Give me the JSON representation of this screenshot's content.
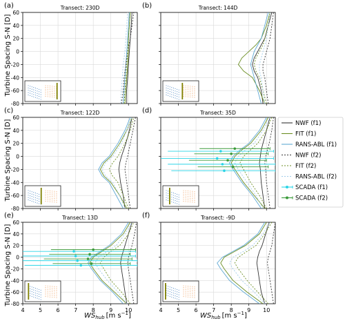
{
  "figure": {
    "shared_ylabel": "Turbine Spacing S-N [D]",
    "shared_xlabel_main": "WS",
    "shared_xlabel_sub": "hub",
    "shared_xlabel_unit": "[m s",
    "shared_xlabel_exp": "−1",
    "shared_xlabel_close": "]"
  },
  "legend": {
    "items": [
      {
        "label": "NWF (f1)",
        "color": "#333333",
        "dash": "solid",
        "marker": "none"
      },
      {
        "label": "FIT (f1)",
        "color": "#6b8e23",
        "dash": "solid",
        "marker": "none"
      },
      {
        "label": "RANS-ABL (f1)",
        "color": "#5fa8d3",
        "dash": "solid",
        "marker": "none"
      },
      {
        "label": "NWF (f2)",
        "color": "#333333",
        "dash": "dotted",
        "marker": "none"
      },
      {
        "label": "FIT (f2)",
        "color": "#6b8e23",
        "dash": "dotted",
        "marker": "none"
      },
      {
        "label": "RANS-ABL (f2)",
        "color": "#9fcbe8",
        "dash": "dotted",
        "marker": "none"
      },
      {
        "label": "SCADA (f1)",
        "color": "#2ad4e6",
        "dash": "solid",
        "marker": "circle"
      },
      {
        "label": "SCADA (f2)",
        "color": "#3a9a3a",
        "dash": "solid",
        "marker": "circle"
      }
    ]
  },
  "colors": {
    "nwf": "#333333",
    "fit": "#6b8e23",
    "rans": "#5fa8d3",
    "rans2": "#9fcbe8",
    "scada1": "#2ad4e6",
    "scada2": "#3a9a3a",
    "inset_left": "#3f7fbf",
    "inset_right": "#f0a060",
    "inset_bar": "#808000"
  },
  "chart_data": [
    {
      "type": "line",
      "panel": "(a)",
      "title": "Transect: 230D",
      "xlim": [
        4,
        10.5
      ],
      "ylim": [
        -80,
        60
      ],
      "xticks": [
        4,
        5,
        6,
        7,
        8,
        9,
        10
      ],
      "yticks": [
        -80,
        -60,
        -40,
        -20,
        0,
        20,
        40,
        60
      ],
      "y": [
        -80,
        -60,
        -40,
        -20,
        0,
        20,
        40,
        60
      ],
      "series": [
        {
          "key": "nwf_f1",
          "values": [
            9.9,
            9.9,
            9.95,
            10.0,
            10.05,
            10.1,
            10.15,
            10.2
          ]
        },
        {
          "key": "fit_f1",
          "values": [
            9.8,
            9.85,
            9.9,
            9.95,
            10.0,
            10.0,
            10.05,
            10.1
          ]
        },
        {
          "key": "rans_f1",
          "values": [
            9.7,
            9.75,
            9.8,
            9.85,
            9.9,
            9.95,
            10.0,
            10.05
          ]
        },
        {
          "key": "nwf_f2",
          "values": [
            9.6,
            9.7,
            9.75,
            9.85,
            9.95,
            10.1,
            10.2,
            10.3
          ]
        },
        {
          "key": "fit_f2",
          "values": [
            9.75,
            9.8,
            9.85,
            9.9,
            9.95,
            10.0,
            10.05,
            10.1
          ]
        },
        {
          "key": "rans_f2",
          "values": [
            9.55,
            9.6,
            9.65,
            9.7,
            9.8,
            9.85,
            9.9,
            9.95
          ]
        }
      ],
      "scada": [],
      "inset_bar_position": 0.95
    },
    {
      "type": "line",
      "panel": "(b)",
      "title": "Transect: 144D",
      "xlim": [
        4,
        10.5
      ],
      "ylim": [
        -80,
        60
      ],
      "xticks": [
        4,
        5,
        6,
        7,
        8,
        9,
        10
      ],
      "yticks": [
        -80,
        -60,
        -40,
        -20,
        0,
        20,
        40,
        60
      ],
      "y": [
        -80,
        -60,
        -40,
        -30,
        -20,
        -10,
        0,
        10,
        20,
        40,
        60
      ],
      "series": [
        {
          "key": "nwf_f1",
          "values": [
            9.8,
            9.7,
            9.5,
            9.3,
            9.2,
            9.3,
            9.5,
            9.7,
            9.9,
            10.1,
            10.3
          ]
        },
        {
          "key": "fit_f1",
          "values": [
            9.9,
            9.6,
            9.2,
            8.7,
            8.4,
            8.6,
            9.0,
            9.4,
            9.7,
            10.0,
            10.2
          ]
        },
        {
          "key": "rans_f1",
          "values": [
            9.7,
            9.5,
            9.3,
            9.2,
            9.1,
            9.2,
            9.3,
            9.5,
            9.7,
            9.9,
            10.1
          ]
        },
        {
          "key": "nwf_f2",
          "values": [
            10.1,
            10.0,
            9.9,
            9.8,
            9.8,
            9.9,
            10.0,
            10.1,
            10.2,
            10.3,
            10.4
          ]
        },
        {
          "key": "fit_f2",
          "values": [
            10.0,
            9.8,
            9.6,
            9.4,
            9.3,
            9.4,
            9.6,
            9.8,
            9.9,
            10.1,
            10.2
          ]
        },
        {
          "key": "rans_f2",
          "values": [
            9.9,
            9.8,
            9.7,
            9.6,
            9.6,
            9.7,
            9.8,
            9.9,
            10.0,
            10.1,
            10.2
          ]
        }
      ],
      "scada": [],
      "inset_bar_position": 0.55
    },
    {
      "type": "line",
      "panel": "(c)",
      "title": "Transect: 122D",
      "xlim": [
        4,
        10.5
      ],
      "ylim": [
        -80,
        60
      ],
      "xticks": [
        4,
        5,
        6,
        7,
        8,
        9,
        10
      ],
      "yticks": [
        -80,
        -60,
        -40,
        -20,
        0,
        20,
        40,
        60
      ],
      "y": [
        -80,
        -60,
        -40,
        -30,
        -20,
        -10,
        0,
        20,
        40,
        60
      ],
      "series": [
        {
          "key": "nwf_f1",
          "values": [
            9.8,
            9.7,
            9.55,
            9.5,
            9.45,
            9.5,
            9.6,
            9.85,
            10.05,
            10.2
          ]
        },
        {
          "key": "fit_f1",
          "values": [
            9.9,
            9.5,
            9.0,
            8.6,
            8.4,
            8.6,
            9.0,
            9.5,
            9.9,
            10.2
          ]
        },
        {
          "key": "rans_f1",
          "values": [
            9.7,
            9.3,
            8.9,
            8.5,
            8.3,
            8.5,
            8.9,
            9.4,
            9.8,
            10.1
          ]
        },
        {
          "key": "nwf_f2",
          "values": [
            10.1,
            10.0,
            9.9,
            9.85,
            9.8,
            9.85,
            9.95,
            10.1,
            10.25,
            10.4
          ]
        },
        {
          "key": "fit_f2",
          "values": [
            10.0,
            9.7,
            9.4,
            9.1,
            8.9,
            9.1,
            9.4,
            9.8,
            10.1,
            10.3
          ]
        },
        {
          "key": "rans_f2",
          "values": [
            9.8,
            9.5,
            9.1,
            8.7,
            8.5,
            8.7,
            9.1,
            9.6,
            9.9,
            10.2
          ]
        }
      ],
      "scada": [],
      "inset_bar_position": 0.45
    },
    {
      "type": "line",
      "panel": "(d)",
      "title": "Transect: 35D",
      "xlim": [
        4,
        10.5
      ],
      "ylim": [
        -80,
        60
      ],
      "xticks": [
        4,
        5,
        6,
        7,
        8,
        9,
        10
      ],
      "yticks": [
        -80,
        -60,
        -40,
        -20,
        0,
        20,
        40,
        60
      ],
      "y": [
        -80,
        -60,
        -40,
        -20,
        -10,
        0,
        10,
        20,
        40,
        60
      ],
      "series": [
        {
          "key": "nwf_f1",
          "values": [
            9.9,
            9.8,
            9.7,
            9.65,
            9.6,
            9.65,
            9.7,
            9.8,
            10.0,
            10.2
          ]
        },
        {
          "key": "fit_f1",
          "values": [
            9.9,
            9.3,
            8.7,
            8.2,
            8.0,
            8.2,
            8.6,
            9.1,
            9.7,
            10.1
          ]
        },
        {
          "key": "rans_f1",
          "values": [
            9.7,
            9.2,
            8.6,
            8.1,
            7.9,
            8.1,
            8.5,
            9.0,
            9.6,
            10.0
          ]
        },
        {
          "key": "nwf_f2",
          "values": [
            10.2,
            10.1,
            10.0,
            9.95,
            9.9,
            9.95,
            10.05,
            10.15,
            10.3,
            10.4
          ]
        },
        {
          "key": "fit_f2",
          "values": [
            10.0,
            9.6,
            9.1,
            8.7,
            8.5,
            8.7,
            9.1,
            9.5,
            10.0,
            10.3
          ]
        },
        {
          "key": "rans_f2",
          "values": [
            9.8,
            9.4,
            8.9,
            8.4,
            8.2,
            8.4,
            8.8,
            9.3,
            9.8,
            10.2
          ]
        }
      ],
      "scada": [
        {
          "group": "f1",
          "y": [
            8,
            -3,
            -12,
            -22
          ],
          "x": [
            7.4,
            7.2,
            7.5,
            7.6
          ],
          "err": [
            3.0,
            3.2,
            3.1,
            3.0
          ]
        },
        {
          "group": "f2",
          "y": [
            12,
            4,
            -6,
            -16
          ],
          "x": [
            8.2,
            8.0,
            7.8,
            8.1
          ],
          "err": [
            2.0,
            2.1,
            2.2,
            2.0
          ]
        }
      ],
      "inset_bar_position": 0.15
    },
    {
      "type": "line",
      "panel": "(e)",
      "title": "Transect: 13D",
      "xlim": [
        4,
        10.5
      ],
      "ylim": [
        -80,
        60
      ],
      "xticks": [
        4,
        5,
        6,
        7,
        8,
        9,
        10
      ],
      "yticks": [
        -80,
        -60,
        -40,
        -20,
        0,
        20,
        40,
        60
      ],
      "y": [
        -80,
        -60,
        -40,
        -20,
        -10,
        0,
        10,
        20,
        40,
        60
      ],
      "series": [
        {
          "key": "nwf_f1",
          "values": [
            9.9,
            9.8,
            9.7,
            9.6,
            9.55,
            9.6,
            9.7,
            9.8,
            10.0,
            10.2
          ]
        },
        {
          "key": "fit_f1",
          "values": [
            9.9,
            9.2,
            8.5,
            8.0,
            7.8,
            8.0,
            8.5,
            9.0,
            9.7,
            10.1
          ]
        },
        {
          "key": "rans_f1",
          "values": [
            9.7,
            9.1,
            8.4,
            7.9,
            7.7,
            7.9,
            8.4,
            8.9,
            9.6,
            10.0
          ]
        },
        {
          "key": "nwf_f2",
          "values": [
            10.3,
            10.2,
            10.1,
            10.0,
            9.95,
            10.0,
            10.1,
            10.2,
            10.35,
            10.45
          ]
        },
        {
          "key": "fit_f2",
          "values": [
            10.1,
            9.6,
            9.0,
            8.6,
            8.4,
            8.6,
            9.0,
            9.5,
            10.0,
            10.3
          ]
        },
        {
          "key": "rans_f2",
          "values": [
            9.9,
            9.4,
            8.8,
            8.3,
            8.1,
            8.3,
            8.8,
            9.3,
            9.8,
            10.2
          ]
        }
      ],
      "scada": [
        {
          "group": "f1",
          "y": [
            10,
            2,
            -6,
            -14
          ],
          "x": [
            6.9,
            7.0,
            7.1,
            7.3
          ],
          "err": [
            3.5,
            3.4,
            3.6,
            3.2
          ]
        },
        {
          "group": "f2",
          "y": [
            13,
            5,
            -3,
            -11
          ],
          "x": [
            8.0,
            7.8,
            7.7,
            7.9
          ],
          "err": [
            2.4,
            2.3,
            2.5,
            2.2
          ]
        }
      ],
      "inset_bar_position": 0.05
    },
    {
      "type": "line",
      "panel": "(f)",
      "title": "Transect: -9D",
      "xlim": [
        4,
        10.5
      ],
      "ylim": [
        -80,
        60
      ],
      "xticks": [
        4,
        5,
        6,
        7,
        8,
        9,
        10
      ],
      "yticks": [
        -80,
        -60,
        -40,
        -20,
        0,
        20,
        40,
        60
      ],
      "y": [
        -80,
        -60,
        -40,
        -20,
        -10,
        0,
        10,
        20,
        40,
        60
      ],
      "series": [
        {
          "key": "nwf_f1",
          "values": [
            9.9,
            9.7,
            9.6,
            9.5,
            9.45,
            9.5,
            9.6,
            9.75,
            9.95,
            10.15
          ]
        },
        {
          "key": "fit_f1",
          "values": [
            9.8,
            8.9,
            8.1,
            7.6,
            7.4,
            7.6,
            8.2,
            8.8,
            9.6,
            10.0
          ]
        },
        {
          "key": "rans_f1",
          "values": [
            9.6,
            8.7,
            7.9,
            7.4,
            7.2,
            7.5,
            8.1,
            8.7,
            9.5,
            9.9
          ]
        },
        {
          "key": "nwf_f2",
          "values": [
            10.4,
            10.3,
            10.2,
            10.1,
            10.05,
            10.1,
            10.2,
            10.3,
            10.4,
            10.5
          ]
        },
        {
          "key": "fit_f2",
          "values": [
            10.1,
            9.5,
            8.9,
            8.4,
            8.2,
            8.4,
            8.9,
            9.4,
            9.9,
            10.3
          ]
        },
        {
          "key": "rans_f2",
          "values": [
            9.9,
            9.3,
            8.6,
            8.1,
            7.9,
            8.1,
            8.7,
            9.2,
            9.8,
            10.2
          ]
        }
      ],
      "scada": [],
      "inset_bar_position": 0.02
    }
  ]
}
